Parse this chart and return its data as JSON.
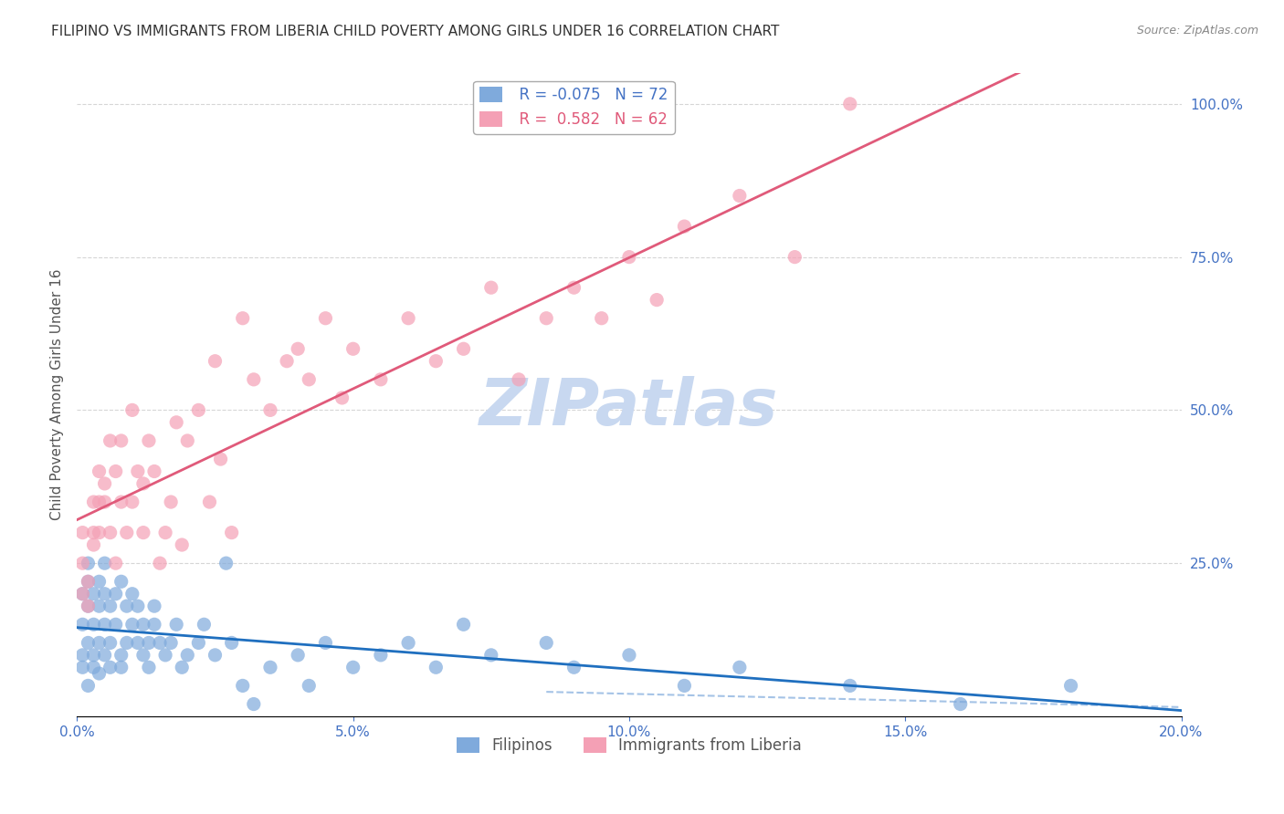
{
  "title": "FILIPINO VS IMMIGRANTS FROM LIBERIA CHILD POVERTY AMONG GIRLS UNDER 16 CORRELATION CHART",
  "source": "Source: ZipAtlas.com",
  "ylabel": "Child Poverty Among Girls Under 16",
  "xlabel_ticks": [
    "0.0%",
    "5.0%",
    "10.0%",
    "15.0%",
    "20.0%"
  ],
  "ylabel_ticks": [
    "0%",
    "25.0%",
    "50.0%",
    "75.0%",
    "100.0%"
  ],
  "xlim": [
    0.0,
    0.2
  ],
  "ylim": [
    0.0,
    1.05
  ],
  "filipino_R": -0.075,
  "filipino_N": 72,
  "liberia_R": 0.582,
  "liberia_N": 62,
  "filipino_color": "#7faadc",
  "liberia_color": "#f4a0b5",
  "filipino_line_color": "#1f6fbf",
  "liberia_line_color": "#e05a7a",
  "dashed_line_color": "#7faadc",
  "watermark_color": "#c8d8f0",
  "watermark_text": "ZIPatlas",
  "legend_label_filipino": "Filipinos",
  "legend_label_liberia": "Immigrants from Liberia",
  "background_color": "#ffffff",
  "grid_color": "#cccccc",
  "axis_label_color": "#4472c4",
  "title_color": "#333333",
  "filipino_x": [
    0.001,
    0.001,
    0.001,
    0.001,
    0.002,
    0.002,
    0.002,
    0.002,
    0.002,
    0.003,
    0.003,
    0.003,
    0.003,
    0.004,
    0.004,
    0.004,
    0.004,
    0.005,
    0.005,
    0.005,
    0.005,
    0.006,
    0.006,
    0.006,
    0.007,
    0.007,
    0.008,
    0.008,
    0.008,
    0.009,
    0.009,
    0.01,
    0.01,
    0.011,
    0.011,
    0.012,
    0.012,
    0.013,
    0.013,
    0.014,
    0.014,
    0.015,
    0.016,
    0.017,
    0.018,
    0.019,
    0.02,
    0.022,
    0.023,
    0.025,
    0.027,
    0.028,
    0.03,
    0.032,
    0.035,
    0.04,
    0.042,
    0.045,
    0.05,
    0.055,
    0.06,
    0.065,
    0.07,
    0.075,
    0.085,
    0.09,
    0.1,
    0.11,
    0.12,
    0.14,
    0.16,
    0.18
  ],
  "filipino_y": [
    0.1,
    0.15,
    0.2,
    0.08,
    0.18,
    0.22,
    0.25,
    0.12,
    0.05,
    0.15,
    0.2,
    0.08,
    0.1,
    0.18,
    0.22,
    0.12,
    0.07,
    0.2,
    0.15,
    0.1,
    0.25,
    0.18,
    0.12,
    0.08,
    0.2,
    0.15,
    0.22,
    0.1,
    0.08,
    0.18,
    0.12,
    0.15,
    0.2,
    0.12,
    0.18,
    0.1,
    0.15,
    0.12,
    0.08,
    0.15,
    0.18,
    0.12,
    0.1,
    0.12,
    0.15,
    0.08,
    0.1,
    0.12,
    0.15,
    0.1,
    0.25,
    0.12,
    0.05,
    0.02,
    0.08,
    0.1,
    0.05,
    0.12,
    0.08,
    0.1,
    0.12,
    0.08,
    0.15,
    0.1,
    0.12,
    0.08,
    0.1,
    0.05,
    0.08,
    0.05,
    0.02,
    0.05
  ],
  "liberia_x": [
    0.001,
    0.001,
    0.001,
    0.002,
    0.002,
    0.003,
    0.003,
    0.003,
    0.004,
    0.004,
    0.004,
    0.005,
    0.005,
    0.006,
    0.006,
    0.007,
    0.007,
    0.008,
    0.008,
    0.009,
    0.01,
    0.01,
    0.011,
    0.012,
    0.012,
    0.013,
    0.014,
    0.015,
    0.016,
    0.017,
    0.018,
    0.019,
    0.02,
    0.022,
    0.024,
    0.025,
    0.026,
    0.028,
    0.03,
    0.032,
    0.035,
    0.038,
    0.04,
    0.042,
    0.045,
    0.048,
    0.05,
    0.055,
    0.06,
    0.065,
    0.07,
    0.075,
    0.08,
    0.085,
    0.09,
    0.095,
    0.1,
    0.105,
    0.11,
    0.12,
    0.13,
    0.14
  ],
  "liberia_y": [
    0.2,
    0.25,
    0.3,
    0.18,
    0.22,
    0.3,
    0.35,
    0.28,
    0.3,
    0.35,
    0.4,
    0.35,
    0.38,
    0.3,
    0.45,
    0.25,
    0.4,
    0.35,
    0.45,
    0.3,
    0.35,
    0.5,
    0.4,
    0.3,
    0.38,
    0.45,
    0.4,
    0.25,
    0.3,
    0.35,
    0.48,
    0.28,
    0.45,
    0.5,
    0.35,
    0.58,
    0.42,
    0.3,
    0.65,
    0.55,
    0.5,
    0.58,
    0.6,
    0.55,
    0.65,
    0.52,
    0.6,
    0.55,
    0.65,
    0.58,
    0.6,
    0.7,
    0.55,
    0.65,
    0.7,
    0.65,
    0.75,
    0.68,
    0.8,
    0.85,
    0.75,
    1.0
  ]
}
